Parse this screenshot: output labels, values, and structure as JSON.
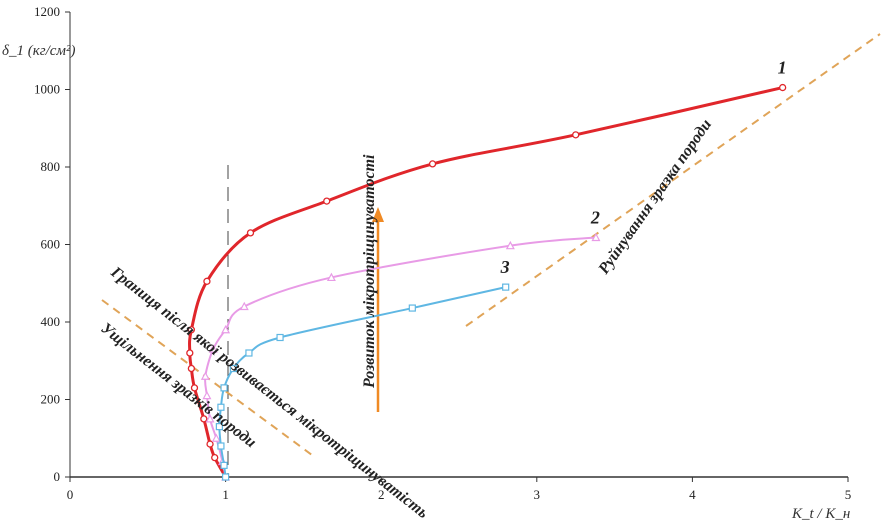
{
  "chart_data": {
    "type": "line",
    "title": "",
    "xlabel": "K_t / K_н",
    "ylabel": "δ_1 (кг/см²)",
    "xlim": [
      0,
      5
    ],
    "ylim": [
      0,
      1200
    ],
    "x_ticks": [
      "0",
      "1",
      "2",
      "3",
      "4",
      "5"
    ],
    "y_ticks": [
      "0",
      "200",
      "400",
      "600",
      "800",
      "1000",
      "1200"
    ],
    "grid": false,
    "legend": "none",
    "series": [
      {
        "name": "1",
        "color": "#e0262b",
        "marker": "circle",
        "x": [
          1.0,
          0.93,
          0.9,
          0.86,
          0.8,
          0.78,
          0.77,
          0.78,
          0.88,
          1.16,
          1.65,
          2.33,
          3.25,
          4.58
        ],
        "y": [
          0,
          50,
          85,
          150,
          230,
          280,
          320,
          380,
          505,
          630,
          712,
          808,
          883,
          1005
        ]
      },
      {
        "name": "2",
        "color": "#e89be6",
        "marker": "triangle",
        "x": [
          1.0,
          0.98,
          0.94,
          0.9,
          0.88,
          0.87,
          0.92,
          1.0,
          1.12,
          1.68,
          2.83,
          3.38
        ],
        "y": [
          0,
          40,
          100,
          150,
          210,
          260,
          330,
          380,
          440,
          515,
          597,
          618
        ]
      },
      {
        "name": "3",
        "color": "#5fb7e3",
        "marker": "square",
        "x": [
          1.0,
          0.99,
          0.97,
          0.96,
          0.97,
          0.99,
          1.05,
          1.15,
          1.35,
          2.2,
          2.8
        ],
        "y": [
          0,
          30,
          80,
          130,
          180,
          230,
          280,
          320,
          360,
          436,
          490
        ]
      }
    ],
    "annotations": [
      "Руйнування зразка породи",
      "Розвиток мікротріщинуватості",
      "Границя після якої розвивається мікротріщинуватість",
      "Ущільнення зразків породи"
    ]
  }
}
